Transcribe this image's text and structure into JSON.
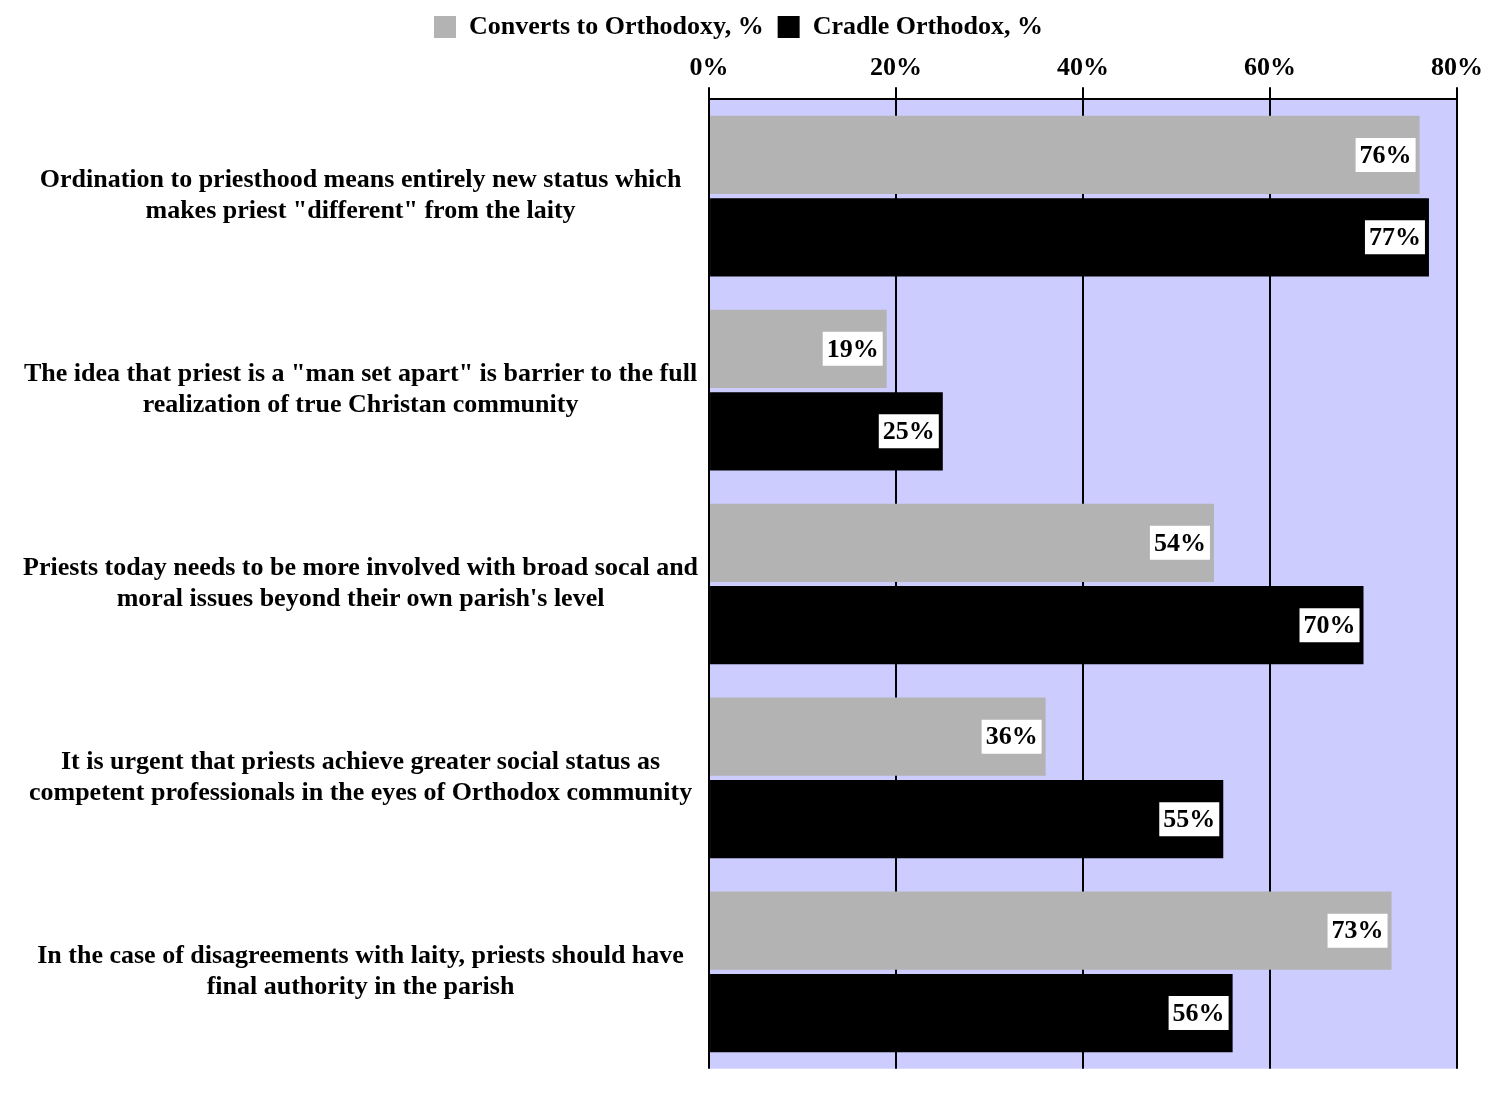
{
  "chart_data": {
    "type": "bar",
    "orientation": "horizontal",
    "categories": [
      "Ordination to priesthood means entirely new status which makes priest \"different\" from the laity",
      "The idea that priest is a \"man set apart\" is barrier to the full realization of true Christan community",
      "Priests today needs to be more involved with broad socal and moral issues beyond their own parish's level",
      "It is urgent that priests achieve greater social status as competent professionals in the eyes of Orthodox community",
      "In the case of disagreements with laity, priests should have final authority in the parish"
    ],
    "series": [
      {
        "name": "Converts to Orthodoxy, %",
        "color": "#b3b3b3",
        "values": [
          76,
          19,
          54,
          36,
          73
        ],
        "value_labels": [
          "76%",
          "19%",
          "54%",
          "36%",
          "73%"
        ]
      },
      {
        "name": "Cradle Orthodox, %",
        "color": "#000000",
        "values": [
          77,
          25,
          70,
          55,
          56
        ],
        "value_labels": [
          "77%",
          "25%",
          "70%",
          "55%",
          "56%"
        ]
      }
    ],
    "xlim": [
      0,
      80
    ],
    "xticks": [
      {
        "value": 0,
        "label": "0%"
      },
      {
        "value": 20,
        "label": "20%"
      },
      {
        "value": 40,
        "label": "40%"
      },
      {
        "value": 60,
        "label": "60%"
      },
      {
        "value": 80,
        "label": "80%"
      }
    ],
    "grid": "x",
    "legend": "top"
  }
}
